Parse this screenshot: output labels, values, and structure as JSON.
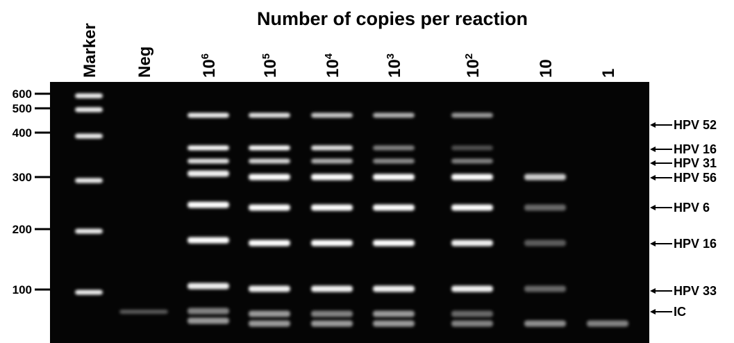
{
  "title": "Number of copies per reaction",
  "lanes": [
    {
      "label": "Marker"
    },
    {
      "label": "Neg"
    },
    {
      "label": "10",
      "sup": "6"
    },
    {
      "label": "10",
      "sup": "5"
    },
    {
      "label": "10",
      "sup": "4"
    },
    {
      "label": "10",
      "sup": "3"
    },
    {
      "label": "10",
      "sup": "2"
    },
    {
      "label": "10"
    },
    {
      "label": "1"
    }
  ],
  "size_markers": [
    "600",
    "500",
    "400",
    "300",
    "200",
    "100"
  ],
  "band_labels": [
    "HPV 52",
    "HPV 16",
    "HPV 31",
    "HPV 56",
    "HPV 6",
    "HPV 16",
    "HPV 33",
    "IC"
  ]
}
